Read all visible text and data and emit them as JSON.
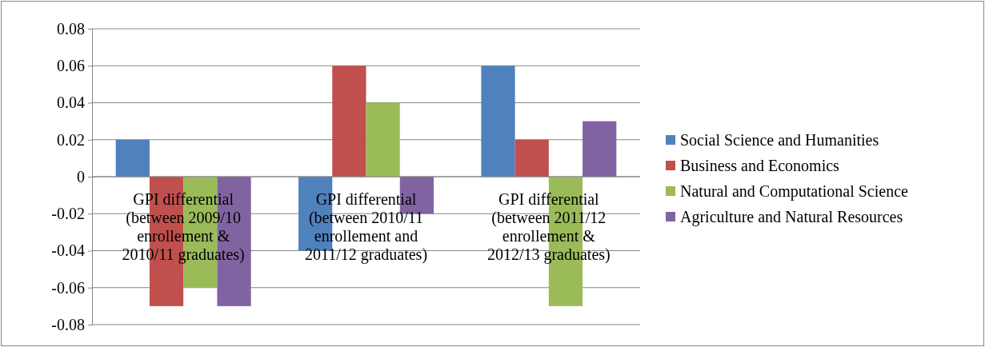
{
  "chart_data": {
    "type": "bar",
    "categories": [
      "GPI differential (between 2009/10 enrollement & 2010/11 graduates)",
      "GPI differential (between 2010/11 enrollement and 2011/12 graduates)",
      "GPI differential (between 2011/12 enrollement & 2012/13 graduates)"
    ],
    "series": [
      {
        "name": "Social Science and Humanities",
        "color": "#4f81bd",
        "values": [
          0.02,
          -0.04,
          0.06
        ]
      },
      {
        "name": "Business and Economics",
        "color": "#c0504d",
        "values": [
          -0.07,
          0.06,
          0.02
        ]
      },
      {
        "name": "Natural and Computational Science",
        "color": "#9bbb59",
        "values": [
          -0.06,
          0.04,
          -0.07
        ]
      },
      {
        "name": "Agriculture and Natural Resources",
        "color": "#8064a2",
        "values": [
          -0.07,
          -0.02,
          0.03
        ]
      }
    ],
    "ylim": [
      -0.08,
      0.08
    ],
    "yticks": [
      -0.08,
      -0.06,
      -0.04,
      -0.02,
      0,
      0.02,
      0.04,
      0.06,
      0.08
    ],
    "grid": "y",
    "legend": "right"
  }
}
